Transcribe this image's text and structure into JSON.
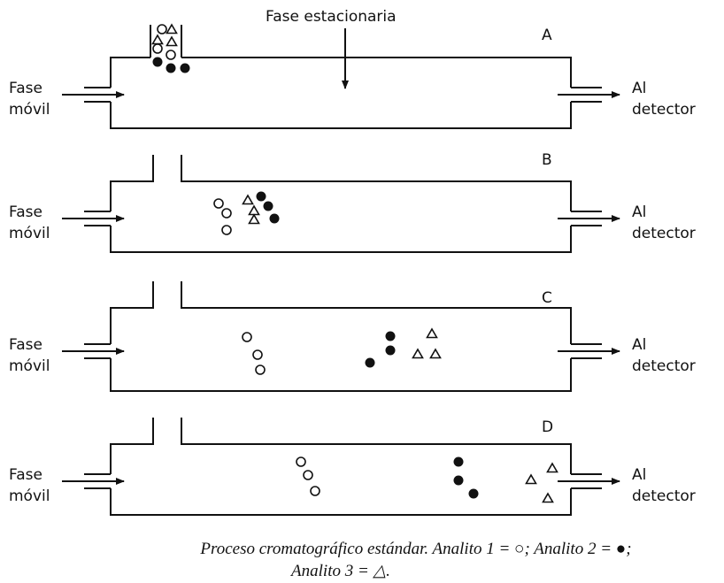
{
  "title": "Fase estacionaria",
  "panels": [
    {
      "label": "A",
      "inlet": [
        "Fase",
        "móvil"
      ],
      "outlet": [
        "Al",
        "detector"
      ]
    },
    {
      "label": "B",
      "inlet": [
        "Fase",
        "móvil"
      ],
      "outlet": [
        "Al",
        "detector"
      ]
    },
    {
      "label": "C",
      "inlet": [
        "Fase",
        "móvil"
      ],
      "outlet": [
        "Al",
        "detector"
      ]
    },
    {
      "label": "D",
      "inlet": [
        "Fase",
        "móvil"
      ],
      "outlet": [
        "Al",
        "detector"
      ]
    }
  ],
  "caption": [
    "Proceso cromatográfico estándar. Analito 1 = ○; Analito 2 = ●;",
    "Analito 3 = △."
  ]
}
